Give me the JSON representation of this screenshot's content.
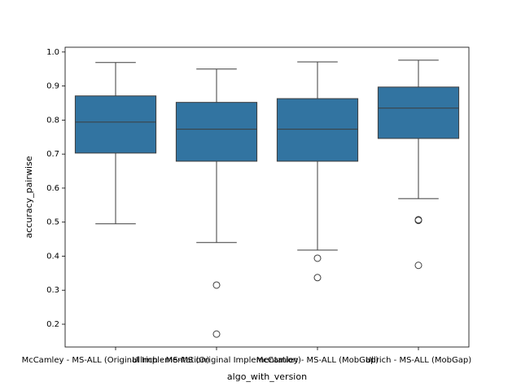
{
  "chart_data": {
    "type": "box",
    "x_label": "algo_with_version",
    "y_label": "accuracy_pairwise",
    "categories": [
      "McCamley - MS-ALL (Original Implementation)",
      "Ullrich - MS-MS (Original Implementation)",
      "McCamley - MS-ALL (MobGap)",
      "Ullrich - MS-ALL (MobGap)"
    ],
    "color": "#3274a1",
    "boxes": [
      {
        "whislo": 0.495,
        "q1": 0.703,
        "med": 0.794,
        "q3": 0.871,
        "whishi": 0.969,
        "fliers": []
      },
      {
        "whislo": 0.44,
        "q1": 0.679,
        "med": 0.773,
        "q3": 0.852,
        "whishi": 0.95,
        "fliers": [
          0.315,
          0.171
        ]
      },
      {
        "whislo": 0.418,
        "q1": 0.679,
        "med": 0.773,
        "q3": 0.863,
        "whishi": 0.971,
        "fliers": [
          0.394,
          0.337
        ]
      },
      {
        "whislo": 0.569,
        "q1": 0.746,
        "med": 0.835,
        "q3": 0.897,
        "whishi": 0.976,
        "fliers": [
          0.507,
          0.505,
          0.373
        ]
      }
    ],
    "ylim": [
      0.133,
      1.014
    ],
    "yticks": [
      0.2,
      0.3,
      0.4,
      0.5,
      0.6,
      0.7,
      0.8,
      0.9,
      {
        "value": 1,
        "label": "1.0"
      }
    ]
  }
}
